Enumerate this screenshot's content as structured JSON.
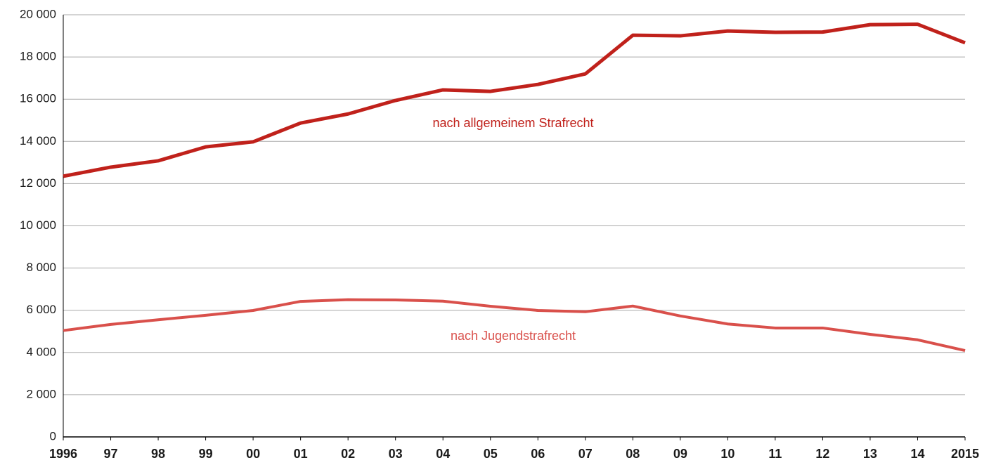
{
  "chart_data": {
    "type": "line",
    "categories": [
      "1996",
      "97",
      "98",
      "99",
      "00",
      "01",
      "02",
      "03",
      "04",
      "05",
      "06",
      "07",
      "08",
      "09",
      "10",
      "11",
      "12",
      "13",
      "14",
      "2015"
    ],
    "series": [
      {
        "name": "nach allgemeinem Strafrecht",
        "color": "#c0211b",
        "values": [
          12350,
          12780,
          13080,
          13740,
          13980,
          14870,
          15300,
          15940,
          16440,
          16370,
          16700,
          17200,
          19030,
          19000,
          19230,
          19170,
          19180,
          19530,
          19550,
          18670
        ]
      },
      {
        "name": "nach Jugendstrafrecht",
        "color": "#d9504b",
        "values": [
          5040,
          5330,
          5550,
          5760,
          5990,
          6420,
          6500,
          6490,
          6430,
          6190,
          5990,
          5930,
          6200,
          5730,
          5350,
          5160,
          5160,
          4860,
          4600,
          4090
        ]
      }
    ],
    "ylim": [
      0,
      20000
    ],
    "yticks": [
      0,
      {
        "value": 2000,
        "label": "2 000"
      },
      {
        "value": 4000,
        "label": "4 000"
      },
      {
        "value": 6000,
        "label": "6 000"
      },
      {
        "value": 8000,
        "label": "8 000"
      },
      {
        "value": 10000,
        "label": "10 000"
      },
      {
        "value": 12000,
        "label": "12 000"
      },
      {
        "value": 14000,
        "label": "14 000"
      },
      {
        "value": 16000,
        "label": "16 000"
      },
      {
        "value": 18000,
        "label": "18 000"
      },
      {
        "value": 20000,
        "label": "20 000"
      }
    ],
    "grid": true
  }
}
